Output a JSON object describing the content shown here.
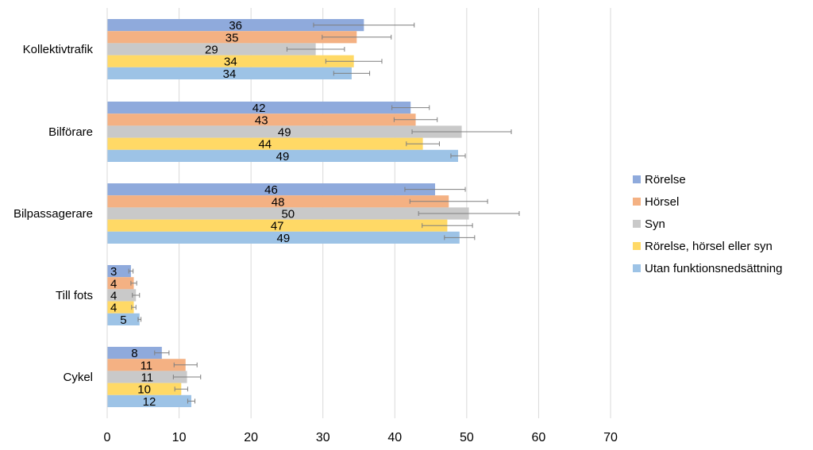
{
  "chart_data": {
    "type": "bar",
    "orientation": "horizontal",
    "title": "",
    "xlabel": "",
    "ylabel": "",
    "xlim": [
      0,
      70
    ],
    "xticks": [
      0,
      10,
      20,
      30,
      40,
      50,
      60,
      70
    ],
    "grid": "vertical",
    "legend_position": "right",
    "categories": [
      "Kollektivtrafik",
      "Bilförare",
      "Bilpassagerare",
      "Till fots",
      "Cykel"
    ],
    "series": [
      {
        "name": "Rörelse",
        "color": "#8FAADC",
        "values": [
          35.7,
          42.2,
          45.6,
          3.3,
          7.6
        ],
        "labels": [
          "36",
          "42",
          "46",
          "3",
          "8"
        ],
        "error": [
          7.0,
          2.6,
          4.2,
          0.3,
          1.0
        ]
      },
      {
        "name": "Hörsel",
        "color": "#F4B183",
        "values": [
          34.7,
          42.9,
          47.5,
          3.7,
          10.9
        ],
        "labels": [
          "35",
          "43",
          "48",
          "4",
          "11"
        ],
        "error": [
          4.8,
          3.0,
          5.4,
          0.4,
          1.6
        ]
      },
      {
        "name": "Syn",
        "color": "#C9C9C9",
        "values": [
          29.0,
          49.3,
          50.3,
          4.0,
          11.1
        ],
        "labels": [
          "29",
          "49",
          "50",
          "4",
          "11"
        ],
        "error": [
          4.0,
          6.9,
          7.0,
          0.5,
          1.9
        ]
      },
      {
        "name": "Rörelse, hörsel eller syn",
        "color": "#FFD966",
        "values": [
          34.3,
          43.9,
          47.3,
          3.7,
          10.3
        ],
        "labels": [
          "34",
          "44",
          "47",
          "4",
          "10"
        ],
        "error": [
          3.9,
          2.3,
          3.5,
          0.3,
          0.9
        ]
      },
      {
        "name": "Utan funktionsnedsättning",
        "color": "#9DC3E6",
        "values": [
          34.0,
          48.8,
          49.0,
          4.5,
          11.7
        ],
        "labels": [
          "34",
          "49",
          "49",
          "5",
          "12"
        ],
        "error": [
          2.5,
          1.0,
          2.1,
          0.2,
          0.5
        ]
      }
    ]
  }
}
